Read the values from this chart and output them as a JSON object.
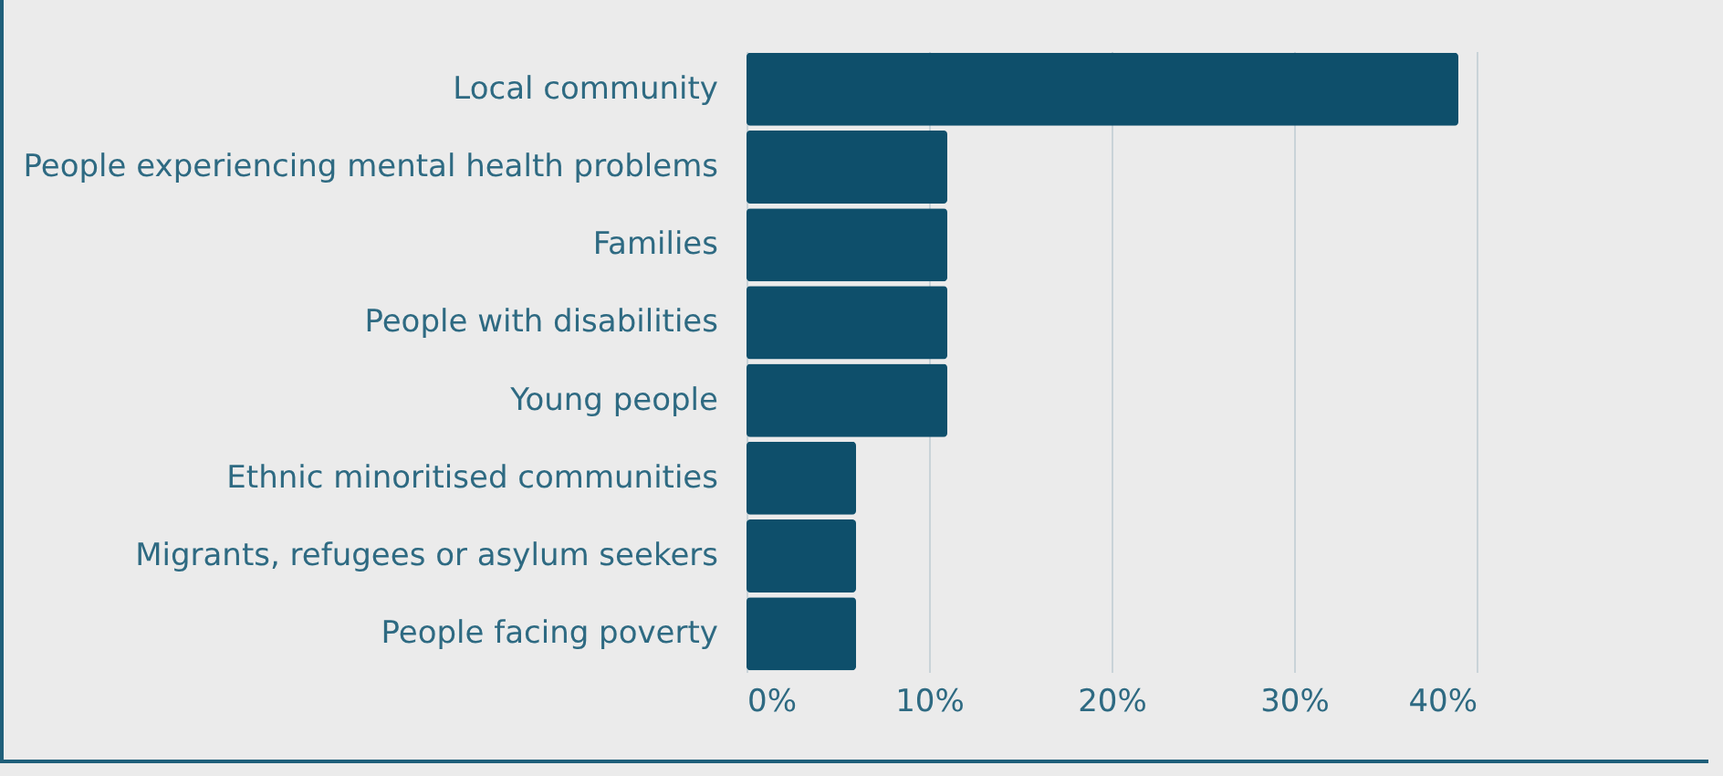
{
  "chart_data": {
    "type": "bar",
    "orientation": "horizontal",
    "categories": [
      "Local community",
      "People experiencing mental health problems",
      "Families",
      "People with disabilities",
      "Young people",
      "Ethnic minoritised communities",
      "Migrants, refugees or asylum seekers",
      "People facing poverty"
    ],
    "values": [
      39,
      11,
      11,
      11,
      11,
      6,
      6,
      6
    ],
    "color": "#0e4f6b",
    "xlim": [
      0,
      40
    ],
    "xticks": [
      {
        "value": 0,
        "label": "0%"
      },
      {
        "value": 10,
        "label": "10%"
      },
      {
        "value": 20,
        "label": "20%"
      },
      {
        "value": 30,
        "label": "30%"
      },
      {
        "value": 40,
        "label": "40%"
      }
    ],
    "grid": "x"
  }
}
